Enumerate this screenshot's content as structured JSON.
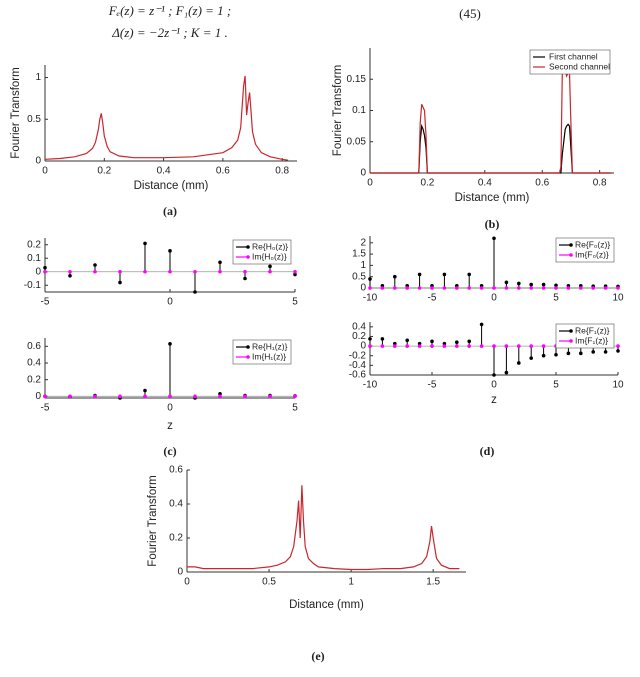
{
  "equation": {
    "lines": [
      "Fₑ(z) = z⁻¹  ;  F₁(z) = 1  ;",
      "Δ(z) = −2z⁻¹  ;  K = 1  ."
    ],
    "number": "(45)"
  },
  "chart_data": [
    {
      "type": "line",
      "panel": "(a)",
      "xlabel": "Distance (mm)",
      "ylabel": "Fourier Transform",
      "xlim": [
        0,
        0.85
      ],
      "xticks": [
        0,
        0.2,
        0.4,
        0.6,
        0.8
      ],
      "ylim": [
        0,
        1.15
      ],
      "yticks": [
        0,
        0.5,
        1
      ],
      "x": [
        0,
        0.05,
        0.1,
        0.14,
        0.16,
        0.17,
        0.18,
        0.185,
        0.19,
        0.195,
        0.2,
        0.21,
        0.22,
        0.25,
        0.3,
        0.4,
        0.5,
        0.6,
        0.63,
        0.65,
        0.66,
        0.67,
        0.675,
        0.68,
        0.685,
        0.69,
        0.695,
        0.7,
        0.71,
        0.73,
        0.76,
        0.8,
        0.82
      ],
      "series": [
        {
          "color": "#c8272d",
          "values": [
            0.02,
            0.03,
            0.05,
            0.09,
            0.15,
            0.22,
            0.38,
            0.5,
            0.57,
            0.45,
            0.3,
            0.17,
            0.11,
            0.06,
            0.04,
            0.04,
            0.05,
            0.1,
            0.16,
            0.25,
            0.4,
            0.9,
            1.02,
            0.55,
            0.7,
            0.82,
            0.6,
            0.35,
            0.2,
            0.1,
            0.05,
            0.02,
            0.01
          ]
        }
      ]
    },
    {
      "type": "line",
      "panel": "(b)",
      "xlabel": "Distance (mm)",
      "ylabel": "Fourier Transform",
      "xlim": [
        0,
        0.85
      ],
      "xticks": [
        0,
        0.2,
        0.4,
        0.6,
        0.8
      ],
      "ylim": [
        0,
        0.2
      ],
      "yticks": [
        0,
        0.05,
        0.1,
        0.15
      ],
      "legend": "upper right",
      "x": [
        0,
        0.17,
        0.175,
        0.18,
        0.185,
        0.19,
        0.195,
        0.2,
        0.205,
        0.66,
        0.665,
        0.67,
        0.68,
        0.685,
        0.69,
        0.695,
        0.7,
        0.705,
        0.84
      ],
      "series": [
        {
          "name": "First channel",
          "color": "#000000",
          "values": [
            0,
            0,
            0.05,
            0.075,
            0.07,
            0.06,
            0.04,
            0,
            0,
            0,
            0,
            0.03,
            0.07,
            0.075,
            0.078,
            0.075,
            0.04,
            0,
            0
          ]
        },
        {
          "name": "Second channel",
          "color": "#c8272d",
          "values": [
            0,
            0,
            0.08,
            0.11,
            0.105,
            0.1,
            0.06,
            0,
            0,
            0,
            0.01,
            0.16,
            0.165,
            0.155,
            0.16,
            0.16,
            0.08,
            0,
            0
          ]
        }
      ]
    },
    {
      "type": "stem",
      "xlim": [
        -5,
        5
      ],
      "xticks": [
        -5,
        0,
        5
      ],
      "ylim": [
        -0.15,
        0.25
      ],
      "yticks": [
        -0.1,
        0,
        0.1,
        0.2
      ],
      "legend": "upper right",
      "x": [
        -5,
        -4,
        -3,
        -2,
        -1,
        0,
        1,
        2,
        3,
        4,
        5
      ],
      "series": [
        {
          "name": "Re{H₀(z)}",
          "color": "#000000",
          "values": [
            0.03,
            -0.03,
            0.05,
            -0.08,
            0.21,
            0.155,
            -0.15,
            0.07,
            -0.05,
            0.04,
            -0.02
          ]
        },
        {
          "name": "Im{H₀(z)}",
          "color": "#ff00ff",
          "values": [
            0,
            0,
            0,
            0,
            0,
            0,
            0,
            0,
            0,
            0,
            0
          ]
        }
      ]
    },
    {
      "type": "stem",
      "panel": "(c)",
      "xlabel": "z",
      "xlim": [
        -5,
        5
      ],
      "xticks": [
        -5,
        0,
        5
      ],
      "ylim": [
        -0.02,
        0.7
      ],
      "yticks": [
        0,
        0.2,
        0.4,
        0.6
      ],
      "legend": "upper right",
      "x": [
        -5,
        -4,
        -3,
        -2,
        -1,
        0,
        1,
        2,
        3,
        4,
        5
      ],
      "series": [
        {
          "name": "Re{H₁(z)}",
          "color": "#000000",
          "values": [
            0,
            -0.005,
            0.01,
            -0.02,
            0.07,
            0.63,
            -0.02,
            0.03,
            0.01,
            0.01,
            0.005
          ]
        },
        {
          "name": "Im{H₁(z)}",
          "color": "#ff00ff",
          "values": [
            0,
            0,
            0,
            0,
            0,
            0,
            0,
            0,
            0,
            0,
            0
          ]
        }
      ]
    },
    {
      "type": "stem",
      "xlim": [
        -10,
        10
      ],
      "xticks": [
        -10,
        -5,
        0,
        5,
        10
      ],
      "ylim": [
        0,
        2.3
      ],
      "yticks": [
        0,
        0.5,
        1,
        1.5,
        2
      ],
      "legend": "upper right",
      "x": [
        -10,
        -9,
        -8,
        -7,
        -6,
        -5,
        -4,
        -3,
        -2,
        -1,
        0,
        1,
        2,
        3,
        4,
        5,
        6,
        7,
        8,
        9,
        10
      ],
      "series": [
        {
          "name": "Re{F₀(z)}",
          "color": "#000000",
          "values": [
            0.4,
            0.1,
            0.5,
            0.1,
            0.6,
            0.1,
            0.6,
            0.1,
            0.6,
            0.1,
            2.2,
            0.25,
            0.2,
            0.15,
            0.15,
            0.12,
            0.1,
            0.1,
            0.08,
            0.08,
            0.07
          ]
        },
        {
          "name": "Im{F₀(z)}",
          "color": "#ff00ff",
          "values": [
            0,
            0,
            0,
            0,
            0,
            0,
            0,
            0,
            0,
            0,
            0,
            0,
            0,
            0,
            0,
            0,
            0,
            0,
            0,
            0,
            0
          ]
        }
      ]
    },
    {
      "type": "stem",
      "panel": "(d)",
      "xlabel": "z",
      "xlim": [
        -10,
        10
      ],
      "xticks": [
        -10,
        -5,
        0,
        5,
        10
      ],
      "ylim": [
        -0.6,
        0.5
      ],
      "yticks": [
        -0.6,
        -0.4,
        -0.2,
        0,
        0.2,
        0.4
      ],
      "legend": "upper right",
      "x": [
        -10,
        -9,
        -8,
        -7,
        -6,
        -5,
        -4,
        -3,
        -2,
        -1,
        0,
        1,
        2,
        3,
        4,
        5,
        6,
        7,
        8,
        9,
        10
      ],
      "series": [
        {
          "name": "Re{F₁(z)}",
          "color": "#000000",
          "values": [
            0.15,
            0.15,
            0.05,
            0.12,
            0.05,
            0.1,
            0.05,
            0.08,
            0.1,
            0.45,
            -0.6,
            -0.55,
            -0.35,
            -0.25,
            -0.2,
            -0.18,
            -0.15,
            -0.15,
            -0.12,
            -0.12,
            -0.1
          ]
        },
        {
          "name": "Im{F₁(z)}",
          "color": "#ff00ff",
          "values": [
            0,
            0,
            0,
            0,
            0,
            0,
            0,
            0,
            0,
            0,
            0,
            0,
            0,
            0,
            0,
            0,
            0,
            0,
            0,
            0,
            0
          ]
        }
      ]
    },
    {
      "type": "line",
      "panel": "(e)",
      "xlabel": "Distance (mm)",
      "ylabel": "Fourier Transform",
      "xlim": [
        0,
        1.7
      ],
      "xticks": [
        0,
        0.5,
        1,
        1.5
      ],
      "ylim": [
        0,
        0.6
      ],
      "yticks": [
        0,
        0.2,
        0.4,
        0.6
      ],
      "x": [
        0,
        0.05,
        0.1,
        0.2,
        0.3,
        0.4,
        0.5,
        0.55,
        0.6,
        0.63,
        0.65,
        0.67,
        0.68,
        0.69,
        0.7,
        0.71,
        0.72,
        0.74,
        0.77,
        0.8,
        0.9,
        1.0,
        1.1,
        1.2,
        1.3,
        1.38,
        1.43,
        1.46,
        1.48,
        1.49,
        1.5,
        1.52,
        1.55,
        1.6,
        1.66
      ],
      "series": [
        {
          "color": "#c8272d",
          "values": [
            0.03,
            0.03,
            0.02,
            0.02,
            0.02,
            0.02,
            0.03,
            0.04,
            0.06,
            0.09,
            0.15,
            0.3,
            0.42,
            0.2,
            0.51,
            0.3,
            0.15,
            0.08,
            0.05,
            0.03,
            0.02,
            0.015,
            0.015,
            0.02,
            0.02,
            0.03,
            0.05,
            0.09,
            0.18,
            0.27,
            0.2,
            0.08,
            0.04,
            0.02,
            0.02
          ]
        }
      ]
    }
  ]
}
